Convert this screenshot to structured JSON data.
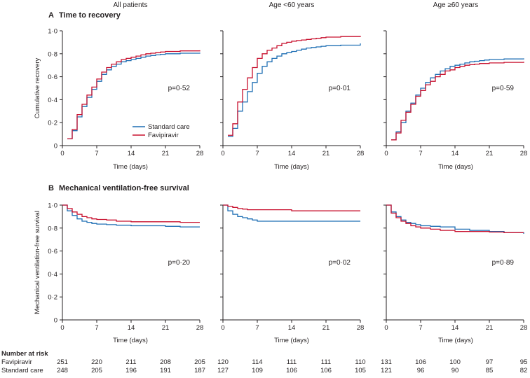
{
  "colors": {
    "standard_care": "#1f6fb4",
    "favipiravir": "#c8102e",
    "axis": "#231f20"
  },
  "panel_labels": {
    "a": "A",
    "b": "B"
  },
  "panel_titles": {
    "a": "Time to recovery",
    "b": "Mechanical ventilation-free survival"
  },
  "column_titles": [
    "All patients",
    "Age <60 years",
    "Age ≥60 years"
  ],
  "axis_labels": {
    "xlabel": "Time (days)",
    "ylabel_a": "Cumulative recovery",
    "ylabel_b": "Mechanical ventilation-free survival"
  },
  "legend": {
    "standard_care": "Standard care",
    "favipiravir": "Favipiravir"
  },
  "risk_table": {
    "title": "Number at risk",
    "row_labels": [
      "Favipiravir",
      "Standard care"
    ],
    "groups": [
      {
        "favipiravir": [
          "251",
          "220",
          "211",
          "208",
          "205"
        ],
        "standard_care": [
          "248",
          "205",
          "196",
          "191",
          "187"
        ]
      },
      {
        "favipiravir": [
          "120",
          "114",
          "111",
          "111",
          "110"
        ],
        "standard_care": [
          "127",
          "109",
          "106",
          "106",
          "105"
        ]
      },
      {
        "favipiravir": [
          "131",
          "106",
          "100",
          "97",
          "95"
        ],
        "standard_care": [
          "121",
          "96",
          "90",
          "85",
          "82"
        ]
      }
    ]
  },
  "chart_data": [
    {
      "type": "line",
      "step": true,
      "panel": "A",
      "subgroup": "All patients",
      "title": "Time to recovery",
      "xlabel": "Time (days)",
      "ylabel": "Cumulative recovery",
      "xlim": [
        0,
        28
      ],
      "ylim": [
        0,
        1.0
      ],
      "xticks": [
        "0",
        "7",
        "14",
        "21",
        "28"
      ],
      "yticks": [
        "0",
        "0·2",
        "0·4",
        "0·6",
        "0·8",
        "1·0"
      ],
      "p_value": "p=0·52",
      "series": [
        {
          "name": "Standard care",
          "x": [
            1,
            2,
            3,
            4,
            5,
            6,
            7,
            8,
            9,
            10,
            11,
            12,
            13,
            14,
            15,
            16,
            17,
            18,
            19,
            20,
            21,
            24,
            28
          ],
          "values": [
            0.06,
            0.13,
            0.25,
            0.34,
            0.42,
            0.49,
            0.56,
            0.62,
            0.66,
            0.69,
            0.71,
            0.73,
            0.74,
            0.75,
            0.76,
            0.77,
            0.78,
            0.785,
            0.79,
            0.795,
            0.8,
            0.805,
            0.81
          ]
        },
        {
          "name": "Favipiravir",
          "x": [
            1,
            2,
            3,
            4,
            5,
            6,
            7,
            8,
            9,
            10,
            11,
            12,
            13,
            14,
            15,
            16,
            17,
            18,
            19,
            20,
            21,
            24,
            28
          ],
          "values": [
            0.06,
            0.14,
            0.27,
            0.36,
            0.44,
            0.51,
            0.58,
            0.64,
            0.68,
            0.71,
            0.73,
            0.75,
            0.76,
            0.77,
            0.78,
            0.79,
            0.8,
            0.805,
            0.81,
            0.815,
            0.82,
            0.825,
            0.83
          ]
        }
      ]
    },
    {
      "type": "line",
      "step": true,
      "panel": "A",
      "subgroup": "Age <60 years",
      "title": "Time to recovery",
      "xlabel": "Time (days)",
      "ylabel": "Cumulative recovery",
      "xlim": [
        0,
        28
      ],
      "ylim": [
        0,
        1.0
      ],
      "xticks": [
        "0",
        "7",
        "14",
        "21",
        "28"
      ],
      "yticks": [],
      "p_value": "p=0·01",
      "series": [
        {
          "name": "Standard care",
          "x": [
            1,
            2,
            3,
            4,
            5,
            6,
            7,
            8,
            9,
            10,
            11,
            12,
            13,
            14,
            15,
            16,
            17,
            18,
            19,
            20,
            21,
            24,
            28
          ],
          "values": [
            0.08,
            0.15,
            0.3,
            0.38,
            0.47,
            0.55,
            0.63,
            0.69,
            0.73,
            0.76,
            0.78,
            0.8,
            0.81,
            0.82,
            0.83,
            0.84,
            0.85,
            0.855,
            0.86,
            0.865,
            0.87,
            0.875,
            0.89
          ]
        },
        {
          "name": "Favipiravir",
          "x": [
            1,
            2,
            3,
            4,
            5,
            6,
            7,
            8,
            9,
            10,
            11,
            12,
            13,
            14,
            15,
            16,
            17,
            18,
            19,
            20,
            21,
            24,
            28
          ],
          "values": [
            0.09,
            0.19,
            0.38,
            0.49,
            0.59,
            0.68,
            0.76,
            0.8,
            0.83,
            0.85,
            0.87,
            0.89,
            0.9,
            0.91,
            0.915,
            0.92,
            0.925,
            0.93,
            0.935,
            0.94,
            0.945,
            0.95,
            0.955
          ]
        }
      ]
    },
    {
      "type": "line",
      "step": true,
      "panel": "A",
      "subgroup": "Age ≥60 years",
      "title": "Time to recovery",
      "xlabel": "Time (days)",
      "ylabel": "Cumulative recovery",
      "xlim": [
        0,
        28
      ],
      "ylim": [
        0,
        1.0
      ],
      "xticks": [
        "0",
        "7",
        "14",
        "21",
        "28"
      ],
      "yticks": [],
      "p_value": "p=0·59",
      "series": [
        {
          "name": "Standard care",
          "x": [
            1,
            2,
            3,
            4,
            5,
            6,
            7,
            8,
            9,
            10,
            11,
            12,
            13,
            14,
            15,
            16,
            17,
            18,
            19,
            20,
            21,
            24,
            28
          ],
          "values": [
            0.05,
            0.12,
            0.2,
            0.3,
            0.37,
            0.44,
            0.5,
            0.55,
            0.59,
            0.62,
            0.65,
            0.67,
            0.69,
            0.7,
            0.71,
            0.72,
            0.73,
            0.735,
            0.74,
            0.745,
            0.75,
            0.755,
            0.76
          ]
        },
        {
          "name": "Favipiravir",
          "x": [
            1,
            2,
            3,
            4,
            5,
            6,
            7,
            8,
            9,
            10,
            11,
            12,
            13,
            14,
            15,
            16,
            17,
            18,
            19,
            20,
            21,
            24,
            28
          ],
          "values": [
            0.05,
            0.11,
            0.22,
            0.29,
            0.36,
            0.43,
            0.48,
            0.53,
            0.56,
            0.6,
            0.62,
            0.65,
            0.66,
            0.68,
            0.69,
            0.7,
            0.705,
            0.71,
            0.715,
            0.715,
            0.72,
            0.725,
            0.73
          ]
        }
      ]
    },
    {
      "type": "line",
      "step": true,
      "panel": "B",
      "subgroup": "All patients",
      "title": "Mechanical ventilation-free survival",
      "xlabel": "Time (days)",
      "ylabel": "Mechanical ventilation-free survival",
      "xlim": [
        0,
        28
      ],
      "ylim": [
        0,
        1.0
      ],
      "xticks": [
        "0",
        "7",
        "14",
        "21",
        "28"
      ],
      "yticks": [
        "0",
        "0·2",
        "0·4",
        "0·6",
        "0·8",
        "1·0"
      ],
      "p_value": "p=0·20",
      "series": [
        {
          "name": "Standard care",
          "x": [
            0,
            1,
            2,
            3,
            4,
            5,
            6,
            7,
            9,
            11,
            14,
            21,
            24,
            28
          ],
          "values": [
            1.0,
            0.95,
            0.91,
            0.88,
            0.86,
            0.85,
            0.84,
            0.835,
            0.83,
            0.825,
            0.82,
            0.815,
            0.81,
            0.81
          ]
        },
        {
          "name": "Favipiravir",
          "x": [
            0,
            1,
            2,
            3,
            4,
            5,
            6,
            7,
            9,
            11,
            14,
            21,
            24,
            28
          ],
          "values": [
            1.0,
            0.97,
            0.94,
            0.92,
            0.9,
            0.89,
            0.88,
            0.875,
            0.87,
            0.86,
            0.855,
            0.855,
            0.85,
            0.85
          ]
        }
      ]
    },
    {
      "type": "line",
      "step": true,
      "panel": "B",
      "subgroup": "Age <60 years",
      "title": "Mechanical ventilation-free survival",
      "xlabel": "Time (days)",
      "ylabel": "Mechanical ventilation-free survival",
      "xlim": [
        0,
        28
      ],
      "ylim": [
        0,
        1.0
      ],
      "xticks": [
        "0",
        "7",
        "14",
        "21",
        "28"
      ],
      "yticks": [],
      "p_value": "p=0·02",
      "series": [
        {
          "name": "Standard care",
          "x": [
            0,
            1,
            2,
            3,
            4,
            5,
            6,
            7,
            28
          ],
          "values": [
            1.0,
            0.95,
            0.92,
            0.9,
            0.89,
            0.88,
            0.87,
            0.86,
            0.86
          ]
        },
        {
          "name": "Favipiravir",
          "x": [
            0,
            1,
            2,
            3,
            4,
            5,
            7,
            14,
            28
          ],
          "values": [
            1.0,
            0.99,
            0.98,
            0.97,
            0.965,
            0.96,
            0.96,
            0.95,
            0.95
          ]
        }
      ]
    },
    {
      "type": "line",
      "step": true,
      "panel": "B",
      "subgroup": "Age ≥60 years",
      "title": "Mechanical ventilation-free survival",
      "xlabel": "Time (days)",
      "ylabel": "Mechanical ventilation-free survival",
      "xlim": [
        0,
        28
      ],
      "ylim": [
        0,
        1.0
      ],
      "xticks": [
        "0",
        "7",
        "14",
        "21",
        "28"
      ],
      "yticks": [],
      "p_value": "p=0·89",
      "series": [
        {
          "name": "Standard care",
          "x": [
            0,
            1,
            2,
            3,
            4,
            5,
            6,
            7,
            9,
            11,
            14,
            17,
            21,
            24,
            28
          ],
          "values": [
            1.0,
            0.94,
            0.9,
            0.87,
            0.85,
            0.84,
            0.83,
            0.82,
            0.815,
            0.81,
            0.79,
            0.78,
            0.77,
            0.76,
            0.75
          ]
        },
        {
          "name": "Favipiravir",
          "x": [
            0,
            1,
            2,
            3,
            4,
            5,
            6,
            7,
            9,
            11,
            14,
            17,
            21,
            24,
            28
          ],
          "values": [
            1.0,
            0.93,
            0.89,
            0.86,
            0.84,
            0.82,
            0.81,
            0.8,
            0.79,
            0.78,
            0.77,
            0.77,
            0.765,
            0.76,
            0.76
          ]
        }
      ]
    }
  ]
}
